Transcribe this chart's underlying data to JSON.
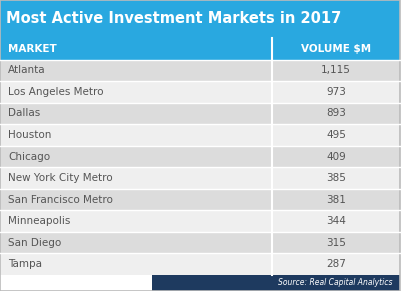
{
  "title": "Most Active Investment Markets in 2017",
  "col_headers": [
    "MARKET",
    "VOLUME $M"
  ],
  "rows": [
    [
      "Atlanta",
      "1,115"
    ],
    [
      "Los Angeles Metro",
      "973"
    ],
    [
      "Dallas",
      "893"
    ],
    [
      "Houston",
      "495"
    ],
    [
      "Chicago",
      "409"
    ],
    [
      "New York City Metro",
      "385"
    ],
    [
      "San Francisco Metro",
      "381"
    ],
    [
      "Minneapolis",
      "344"
    ],
    [
      "San Diego",
      "315"
    ],
    [
      "Tampa",
      "287"
    ]
  ],
  "title_bg_color": "#29A8E0",
  "title_text_color": "#FFFFFF",
  "header_bg_color": "#29A8E0",
  "header_text_color": "#FFFFFF",
  "row_bg_even": "#DCDCDC",
  "row_bg_odd": "#EFEFEF",
  "row_text_color": "#555555",
  "border_color": "#FFFFFF",
  "source_text": "Source: Real Capital Analytics",
  "source_bg": "#1E3A5F",
  "source_text_color": "#FFFFFF",
  "col_split": 0.68
}
